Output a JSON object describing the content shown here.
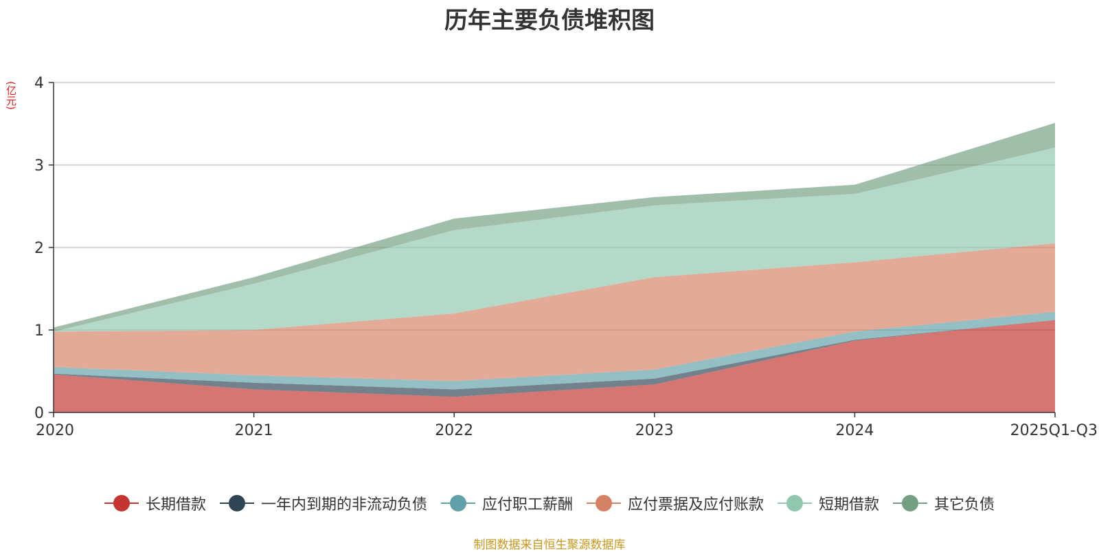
{
  "chart_data": {
    "type": "area",
    "stacked": true,
    "title": "历年主要负债堆积图",
    "ylabel": "(亿元)",
    "xlabel": "",
    "categories": [
      "2020",
      "2021",
      "2022",
      "2023",
      "2024",
      "2025Q1-Q3"
    ],
    "ylim": [
      0,
      4
    ],
    "yticks": [
      0,
      1,
      2,
      3,
      4
    ],
    "grid": true,
    "legend_position": "bottom",
    "series": [
      {
        "name": "长期借款",
        "color": "#c23531",
        "values": [
          0.46,
          0.28,
          0.19,
          0.34,
          0.87,
          1.12
        ]
      },
      {
        "name": "一年内到期的非流动负债",
        "color": "#2f4554",
        "values": [
          0.01,
          0.08,
          0.09,
          0.07,
          0.01,
          0.0
        ]
      },
      {
        "name": "应付职工薪酬",
        "color": "#61a0a8",
        "values": [
          0.08,
          0.09,
          0.1,
          0.11,
          0.1,
          0.1
        ]
      },
      {
        "name": "应付票据及应付账款",
        "color": "#d48265",
        "values": [
          0.43,
          0.55,
          0.82,
          1.12,
          0.84,
          0.83
        ]
      },
      {
        "name": "短期借款",
        "color": "#91c7ae",
        "values": [
          0.0,
          0.56,
          1.01,
          0.87,
          0.83,
          1.16
        ]
      },
      {
        "name": "其它负债",
        "color": "#749f83",
        "values": [
          0.05,
          0.08,
          0.14,
          0.1,
          0.11,
          0.3
        ]
      }
    ]
  },
  "source_note": "制图数据来自恒生聚源数据库"
}
